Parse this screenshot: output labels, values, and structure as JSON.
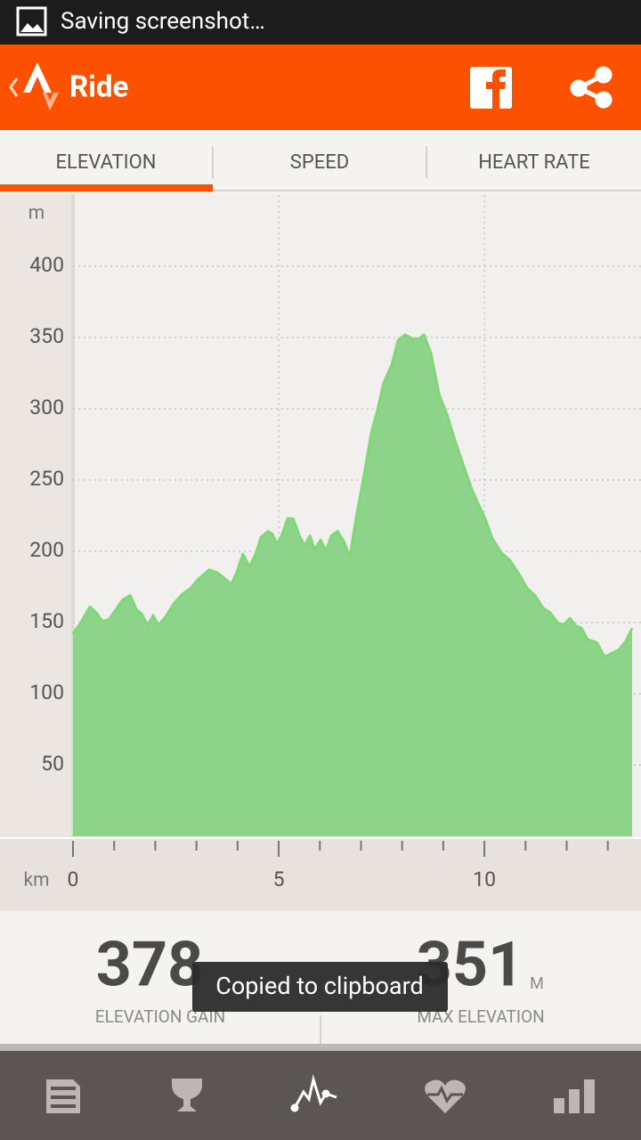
{
  "status_bar": {
    "text": "Saving screenshot…"
  },
  "app_bar": {
    "title": "Ride"
  },
  "tabs": [
    "ELEVATION",
    "SPEED",
    "HEART RATE"
  ],
  "chart_data": {
    "type": "area",
    "x_label": "km",
    "y_label": "m",
    "x": [
      0,
      0.17,
      0.41,
      0.56,
      0.71,
      0.87,
      1.04,
      1.21,
      1.39,
      1.54,
      1.67,
      1.82,
      1.95,
      2.08,
      2.25,
      2.47,
      2.66,
      2.86,
      3.03,
      3.31,
      3.51,
      3.68,
      3.85,
      3.98,
      4.13,
      4.29,
      4.44,
      4.57,
      4.74,
      4.85,
      4.96,
      5.06,
      5.22,
      5.35,
      5.5,
      5.63,
      5.76,
      5.87,
      6.02,
      6.15,
      6.28,
      6.43,
      6.58,
      6.73,
      6.88,
      7.06,
      7.25,
      7.4,
      7.55,
      7.75,
      7.9,
      8.07,
      8.27,
      8.4,
      8.53,
      8.7,
      8.9,
      9.09,
      9.26,
      9.48,
      9.7,
      9.87,
      10.02,
      10.19,
      10.41,
      10.61,
      10.82,
      11.04,
      11.23,
      11.43,
      11.6,
      11.8,
      11.95,
      12.08,
      12.21,
      12.36,
      12.51,
      12.73,
      12.92,
      13.07,
      13.27,
      13.44,
      13.59
    ],
    "values": [
      142,
      149,
      161,
      157,
      151,
      152,
      159,
      166,
      169,
      159,
      156,
      148,
      155,
      148,
      154,
      164,
      170,
      174,
      180,
      187,
      185,
      181,
      177,
      185,
      198,
      189,
      198,
      210,
      214,
      212,
      205,
      210,
      223,
      223,
      211,
      204,
      211,
      201,
      208,
      200,
      211,
      214,
      207,
      196,
      223,
      251,
      283,
      299,
      318,
      331,
      348,
      352,
      349,
      349,
      352,
      339,
      310,
      296,
      280,
      261,
      243,
      232,
      223,
      209,
      199,
      194,
      185,
      174,
      169,
      160,
      157,
      149,
      149,
      153,
      148,
      146,
      138,
      136,
      126,
      128,
      131,
      137,
      146
    ],
    "color": "#8dd389",
    "line_color": "#7fd876",
    "xlim": [
      0,
      13.59
    ],
    "ylim": [
      0,
      450
    ],
    "xticks": [
      0,
      5,
      10
    ],
    "xminorticks": [
      1,
      2,
      3,
      4,
      6,
      7,
      8,
      9,
      11,
      12,
      13
    ],
    "yticks": [
      50,
      100,
      150,
      200,
      250,
      300,
      350,
      400
    ],
    "grid": true
  },
  "stats": [
    {
      "value": 378,
      "label": "ELEVATION GAIN"
    },
    {
      "value": 351,
      "unit": "M",
      "label": "MAX ELEVATION"
    }
  ],
  "toast": "Copied to clipboard"
}
